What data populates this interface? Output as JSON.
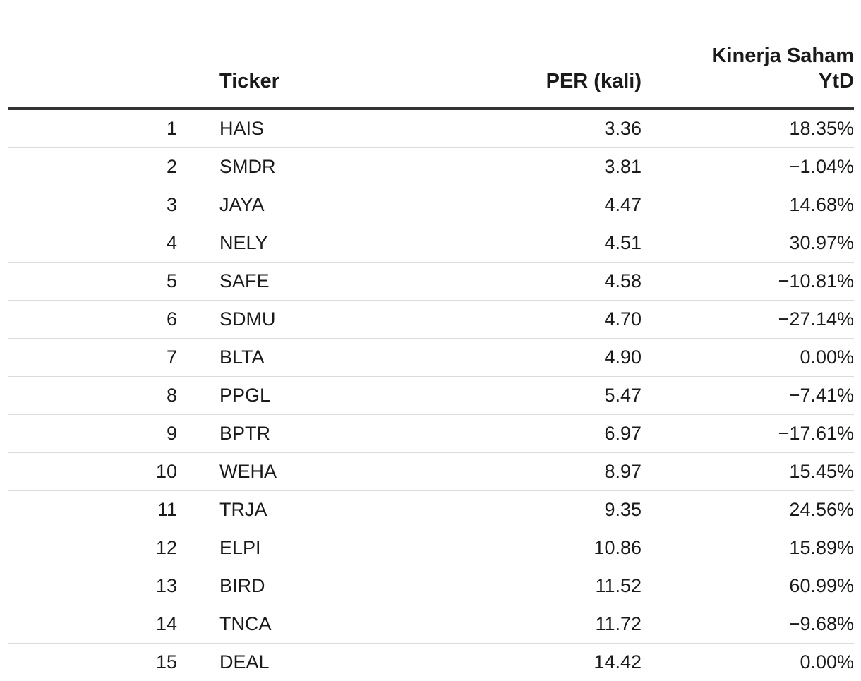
{
  "table": {
    "headers": {
      "rank": "",
      "ticker": "Ticker",
      "per": "PER (kali)",
      "perf_line1": "Kinerja Saham",
      "perf_line2": "YtD"
    },
    "rows": [
      {
        "rank": "1",
        "ticker": "HAIS",
        "per": "3.36",
        "perf": "18.35%"
      },
      {
        "rank": "2",
        "ticker": "SMDR",
        "per": "3.81",
        "perf": "−1.04%"
      },
      {
        "rank": "3",
        "ticker": "JAYA",
        "per": "4.47",
        "perf": "14.68%"
      },
      {
        "rank": "4",
        "ticker": "NELY",
        "per": "4.51",
        "perf": "30.97%"
      },
      {
        "rank": "5",
        "ticker": "SAFE",
        "per": "4.58",
        "perf": "−10.81%"
      },
      {
        "rank": "6",
        "ticker": "SDMU",
        "per": "4.70",
        "perf": "−27.14%"
      },
      {
        "rank": "7",
        "ticker": "BLTA",
        "per": "4.90",
        "perf": "0.00%"
      },
      {
        "rank": "8",
        "ticker": "PPGL",
        "per": "5.47",
        "perf": "−7.41%"
      },
      {
        "rank": "9",
        "ticker": "BPTR",
        "per": "6.97",
        "perf": "−17.61%"
      },
      {
        "rank": "10",
        "ticker": "WEHA",
        "per": "8.97",
        "perf": "15.45%"
      },
      {
        "rank": "11",
        "ticker": "TRJA",
        "per": "9.35",
        "perf": "24.56%"
      },
      {
        "rank": "12",
        "ticker": "ELPI",
        "per": "10.86",
        "perf": "15.89%"
      },
      {
        "rank": "13",
        "ticker": "BIRD",
        "per": "11.52",
        "perf": "60.99%"
      },
      {
        "rank": "14",
        "ticker": "TNCA",
        "per": "11.72",
        "perf": "−9.68%"
      },
      {
        "rank": "15",
        "ticker": "DEAL",
        "per": "14.42",
        "perf": "0.00%"
      }
    ]
  }
}
